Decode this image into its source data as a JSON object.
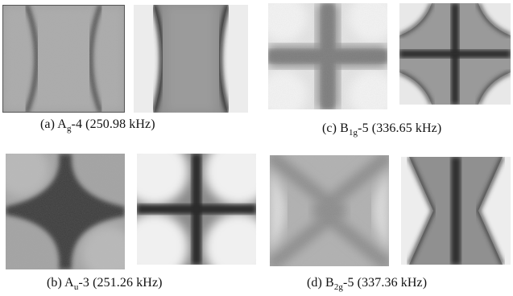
{
  "figure": {
    "captions": [
      {
        "id": "a",
        "prefix": "(a) A",
        "sub": "g",
        "suffix": "-4 (250.98 kHz)"
      },
      {
        "id": "b",
        "prefix": "(b) A",
        "sub": "u",
        "suffix": "-3 (251.26 kHz)"
      },
      {
        "id": "c",
        "prefix": "(c) B",
        "sub": "1g",
        "suffix": "-5 (336.65 kHz)"
      },
      {
        "id": "d",
        "prefix": "(d) B",
        "sub": "2g",
        "suffix": "-5 (337.36 kHz)"
      }
    ]
  }
}
